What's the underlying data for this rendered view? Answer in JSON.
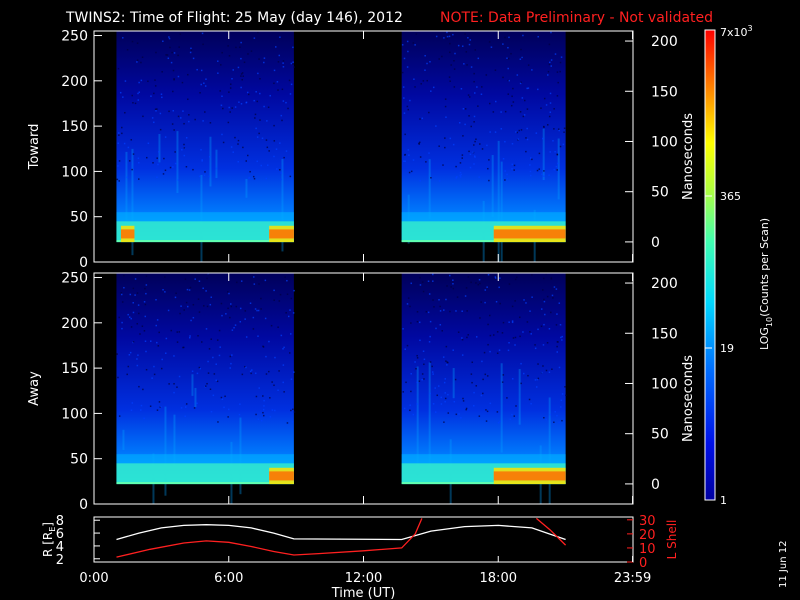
{
  "header": {
    "title": "TWINS2: Time of Flight: 25 May (day 146), 2012",
    "note": "NOTE: Data Preliminary - Not validated"
  },
  "side_date": "11 Jun 12",
  "colors": {
    "background": "#000000",
    "axis": "#ffffff",
    "note": "#ff2020",
    "l_shell": "#ff2020",
    "radius": "#ffffff"
  },
  "colorbar": {
    "ticks": [
      "1",
      "19",
      "365",
      "7x10^3"
    ],
    "tick_top_base": "7x10",
    "tick_top_exp": "3",
    "label_main": "LOG",
    "label_sub": "10",
    "label_rest": "(Counts per Scan)",
    "scale": "log",
    "range": [
      1,
      7000
    ]
  },
  "chart_data": [
    {
      "type": "heatmap",
      "ylabel": "Toward",
      "y2label": "Nanoseconds",
      "ylim": [
        0,
        255
      ],
      "yticks": [
        "0",
        "50",
        "100",
        "150",
        "200",
        "250"
      ],
      "y2lim": [
        -20,
        210
      ],
      "y2ticks": [
        "0",
        "50",
        "100",
        "150",
        "200"
      ],
      "x_hours_range": [
        0,
        24
      ],
      "data_intervals_hours": [
        [
          1.0,
          8.9
        ],
        [
          13.7,
          21.0
        ]
      ],
      "intense_band_channels": [
        22,
        45
      ],
      "hot_intervals_hours": [
        [
          1.2,
          1.8
        ],
        [
          7.8,
          8.9
        ],
        [
          17.8,
          21.0
        ]
      ]
    },
    {
      "type": "heatmap",
      "ylabel": "Away",
      "y2label": "Nanoseconds",
      "ylim": [
        0,
        255
      ],
      "yticks": [
        "0",
        "50",
        "100",
        "150",
        "200",
        "250"
      ],
      "y2lim": [
        -20,
        210
      ],
      "y2ticks": [
        "0",
        "50",
        "100",
        "150",
        "200"
      ],
      "x_hours_range": [
        0,
        24
      ],
      "data_intervals_hours": [
        [
          1.0,
          8.9
        ],
        [
          13.7,
          21.0
        ]
      ],
      "intense_band_channels": [
        22,
        45
      ],
      "hot_intervals_hours": [
        [
          7.8,
          8.9
        ],
        [
          17.8,
          21.0
        ]
      ]
    },
    {
      "type": "line",
      "ylabel": "R [R",
      "ylabel_sub": "E",
      "ylabel_close": "]",
      "y2label": "L Shell",
      "ylim": [
        1.5,
        8.5
      ],
      "yticks": [
        "2",
        "4",
        "6",
        "8"
      ],
      "y2lim": [
        0,
        32
      ],
      "y2ticks": [
        "0",
        "10",
        "20",
        "30"
      ],
      "xlabel": "Time (UT)",
      "xticks": [
        "0:00",
        "6:00",
        "12:00",
        "18:00",
        "23:59"
      ],
      "xtick_hours": [
        0,
        6,
        12,
        18,
        23.98
      ],
      "series": [
        {
          "axis": "left",
          "color": "#ffffff",
          "x": [
            1.0,
            2.0,
            3.0,
            4.0,
            5.0,
            6.0,
            7.0,
            8.0,
            8.9,
            13.7,
            15.0,
            16.5,
            18.0,
            19.5,
            21.0
          ],
          "y": [
            5.0,
            6.0,
            6.8,
            7.2,
            7.3,
            7.2,
            6.8,
            6.0,
            5.1,
            5.0,
            6.3,
            7.0,
            7.2,
            6.8,
            5.0
          ]
        },
        {
          "axis": "right",
          "color": "#ff2020",
          "x": [
            1.0,
            2.5,
            4.0,
            5.0,
            6.0,
            7.0,
            8.0,
            8.9,
            10.0,
            12.0,
            13.7,
            14.3,
            14.6
          ],
          "y": [
            3.5,
            9.0,
            13.5,
            15.0,
            14.0,
            11.0,
            7.5,
            5.0,
            6.0,
            8.0,
            10.0,
            20.0,
            31.0
          ]
        },
        {
          "axis": "right",
          "color": "#ff2020",
          "x": [
            19.7,
            20.3,
            21.0
          ],
          "y": [
            31.0,
            23.0,
            12.0
          ]
        }
      ]
    }
  ]
}
